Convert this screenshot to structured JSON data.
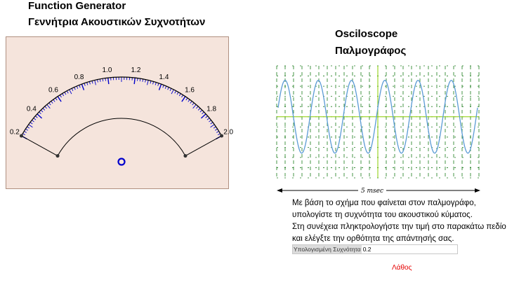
{
  "function_generator": {
    "title_en": "Function Generator",
    "title_el": "Γεννήτρια Ακουστικών Συχνοτήτων",
    "dial_labels": [
      "0.2",
      "0.4",
      "0.6",
      "0.8",
      "1.0",
      "1.2",
      "1.4",
      "1.6",
      "1.8",
      "2.0"
    ],
    "accent_color": "#0000cc"
  },
  "oscilloscope": {
    "title_en": "Osciloscope",
    "title_el": "Παλμογράφος",
    "time_label": "5 msec",
    "wave_color": "#5b9bd5",
    "grid_color": "#1a7a1a",
    "axis_color": "#88cc00",
    "cycles_shown": 6
  },
  "instructions": {
    "line1": "Με βάση το σχήμα που φαίνεται στον παλμογράφο,",
    "line2": "υπολογίστε τη συχνότητα του ακουστικού κύματος.",
    "line3": "Στη συνέχεια πληκτρολογήστε την τιμή στο παρακάτω πεδίο",
    "line4": "και ελέγξτε την ορθότητα της απάντησής σας."
  },
  "answer": {
    "label": "Υπολογισμένη Συχνότητα",
    "value": "0.2"
  },
  "result": {
    "text": "Λάθος",
    "color": "#e60000"
  }
}
